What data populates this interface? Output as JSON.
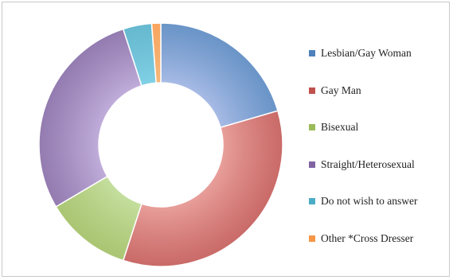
{
  "chart_data": {
    "type": "pie",
    "subtype": "donut",
    "title": "",
    "legend_position": "right",
    "slices": [
      {
        "label": "Lesbian/Gay Woman",
        "value": 20.5,
        "color": "#a9bce6"
      },
      {
        "label": "Gay Man",
        "value": 34.5,
        "color": "#e9a09c"
      },
      {
        "label": "Bisexual",
        "value": 11.5,
        "color": "#c5df9f"
      },
      {
        "label": "Straight/Heterosexual",
        "value": 28.5,
        "color": "#c1aedb"
      },
      {
        "label": "Do not wish to answer",
        "value": 3.8,
        "color": "#82d1e6"
      },
      {
        "label": "Other *Cross Dresser",
        "value": 1.2,
        "color": "#f6b87a"
      }
    ],
    "legend_swatch_colors": [
      "#4f81bd",
      "#c0504d",
      "#9bbb59",
      "#8064a2",
      "#4bacc6",
      "#f79646"
    ],
    "edge_colors": [
      "#4f81bd",
      "#c0504d",
      "#9bbb59",
      "#8064a2",
      "#4bacc6",
      "#f79646"
    ]
  }
}
